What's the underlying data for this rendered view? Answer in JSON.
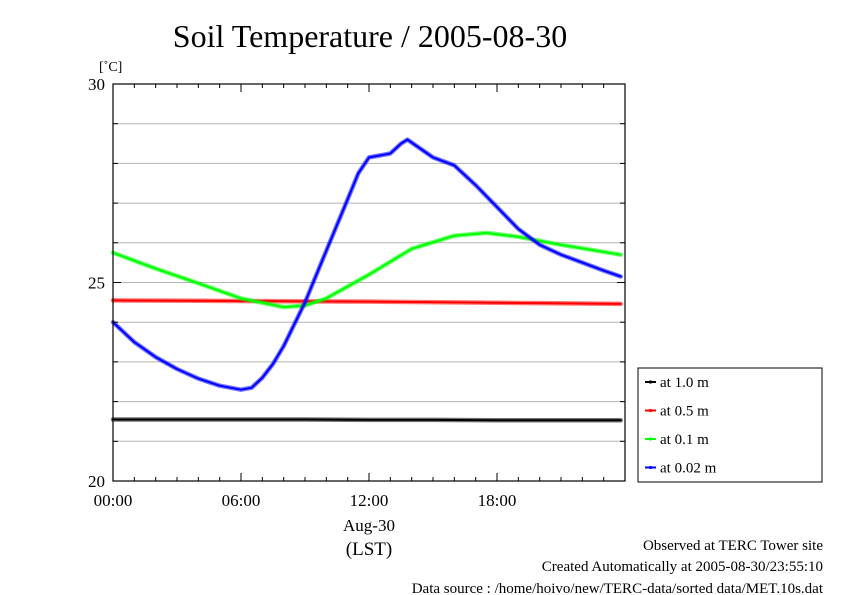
{
  "chart_data": {
    "type": "line",
    "title": "Soil Temperature / 2005-08-30",
    "yunit": "[˚C]",
    "ylim": [
      20,
      30
    ],
    "yticks": [
      20,
      25,
      30
    ],
    "y_minor_step": 1,
    "xlim": [
      0,
      24
    ],
    "xticks": [
      {
        "x": 0,
        "label": "00:00"
      },
      {
        "x": 6,
        "label": "06:00"
      },
      {
        "x": 12,
        "label": "12:00"
      },
      {
        "x": 18,
        "label": "18:00"
      }
    ],
    "date_label": "Aug-30",
    "xlabel": "(LST)",
    "grid": true,
    "legend_position": "right",
    "series": [
      {
        "name": "at 1.0 m",
        "color": "#000000",
        "x": [
          0,
          3,
          6,
          9,
          12,
          15,
          18,
          21,
          23.8
        ],
        "y": [
          21.55,
          21.55,
          21.55,
          21.55,
          21.54,
          21.54,
          21.53,
          21.53,
          21.53
        ]
      },
      {
        "name": "at 0.5 m",
        "color": "#ff0000",
        "x": [
          0,
          4,
          8,
          12,
          16,
          20,
          23.8
        ],
        "y": [
          24.55,
          24.54,
          24.53,
          24.52,
          24.5,
          24.48,
          24.46
        ]
      },
      {
        "name": "at 0.1 m",
        "color": "#00ff00",
        "x": [
          0,
          2,
          4,
          6,
          8,
          9,
          10,
          12,
          14,
          16,
          17.5,
          19,
          21,
          23.8
        ],
        "y": [
          25.75,
          25.35,
          24.98,
          24.6,
          24.38,
          24.42,
          24.6,
          25.2,
          25.85,
          26.18,
          26.25,
          26.15,
          25.95,
          25.7
        ]
      },
      {
        "name": "at 0.02 m",
        "color": "#0000ff",
        "x": [
          0,
          1,
          2,
          3,
          4,
          5,
          6,
          6.5,
          7,
          7.5,
          8,
          9,
          10,
          11,
          11.5,
          12,
          12.5,
          13,
          13.5,
          13.8,
          14.2,
          14.6,
          15,
          15.5,
          16,
          17,
          18,
          19,
          20,
          21,
          22,
          23,
          23.8
        ],
        "y": [
          24.0,
          23.5,
          23.12,
          22.82,
          22.58,
          22.4,
          22.3,
          22.35,
          22.6,
          22.95,
          23.4,
          24.5,
          25.8,
          27.1,
          27.75,
          28.15,
          28.2,
          28.25,
          28.5,
          28.6,
          28.45,
          28.3,
          28.15,
          28.05,
          27.95,
          27.45,
          26.9,
          26.35,
          25.95,
          25.7,
          25.5,
          25.3,
          25.15
        ]
      }
    ]
  },
  "footer": {
    "observed": "Observed at TERC Tower site",
    "created": "Created Automatically at 2005-08-30/23:55:10",
    "source": "Data source : /home/hoivo/new/TERC-data/sorted data/MET.10s.dat"
  }
}
